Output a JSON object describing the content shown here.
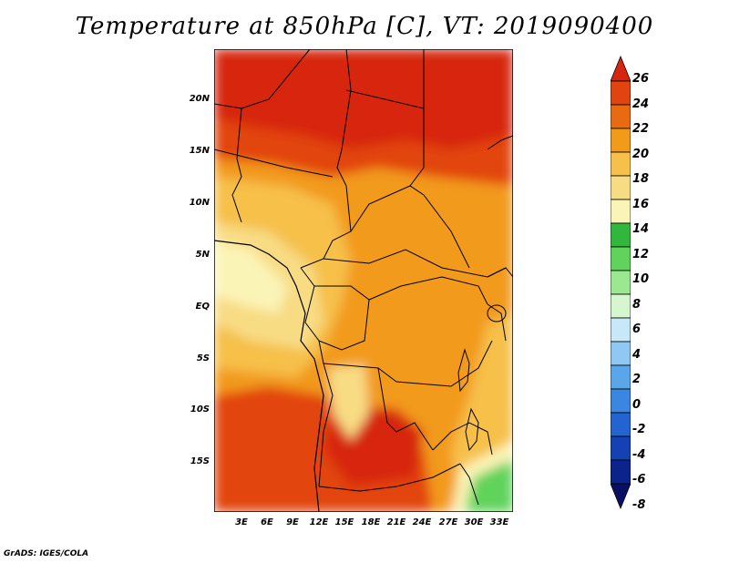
{
  "title": "Temperature at 850hPa [C], VT: 2019090400",
  "footer": "GrADS: IGES/COLA",
  "map": {
    "region": "Central Africa",
    "variable": "Temperature at 850hPa",
    "units": "C",
    "lat_ticks": [
      "20N",
      "15N",
      "10N",
      "5N",
      "EQ",
      "5S",
      "10S",
      "15S"
    ],
    "lon_ticks": [
      "3E",
      "6E",
      "9E",
      "12E",
      "15E",
      "18E",
      "21E",
      "24E",
      "27E",
      "30E",
      "33E"
    ]
  },
  "colorbar": {
    "labels": [
      "26",
      "24",
      "22",
      "20",
      "18",
      "16",
      "14",
      "12",
      "10",
      "8",
      "6",
      "4",
      "2",
      "0",
      "-2",
      "-4",
      "-6",
      "-8"
    ],
    "colors": [
      "#d7260f",
      "#e2440f",
      "#ea6a12",
      "#f29a1a",
      "#f6c04a",
      "#f8dc84",
      "#fbf4b7",
      "#31b73b",
      "#5fd35a",
      "#9ae88f",
      "#d6f6d0",
      "#c6e8f8",
      "#8fc8f2",
      "#5aa6ea",
      "#3a86e1",
      "#2463d2",
      "#1442b4",
      "#0b238a",
      "#0a0f63"
    ]
  }
}
